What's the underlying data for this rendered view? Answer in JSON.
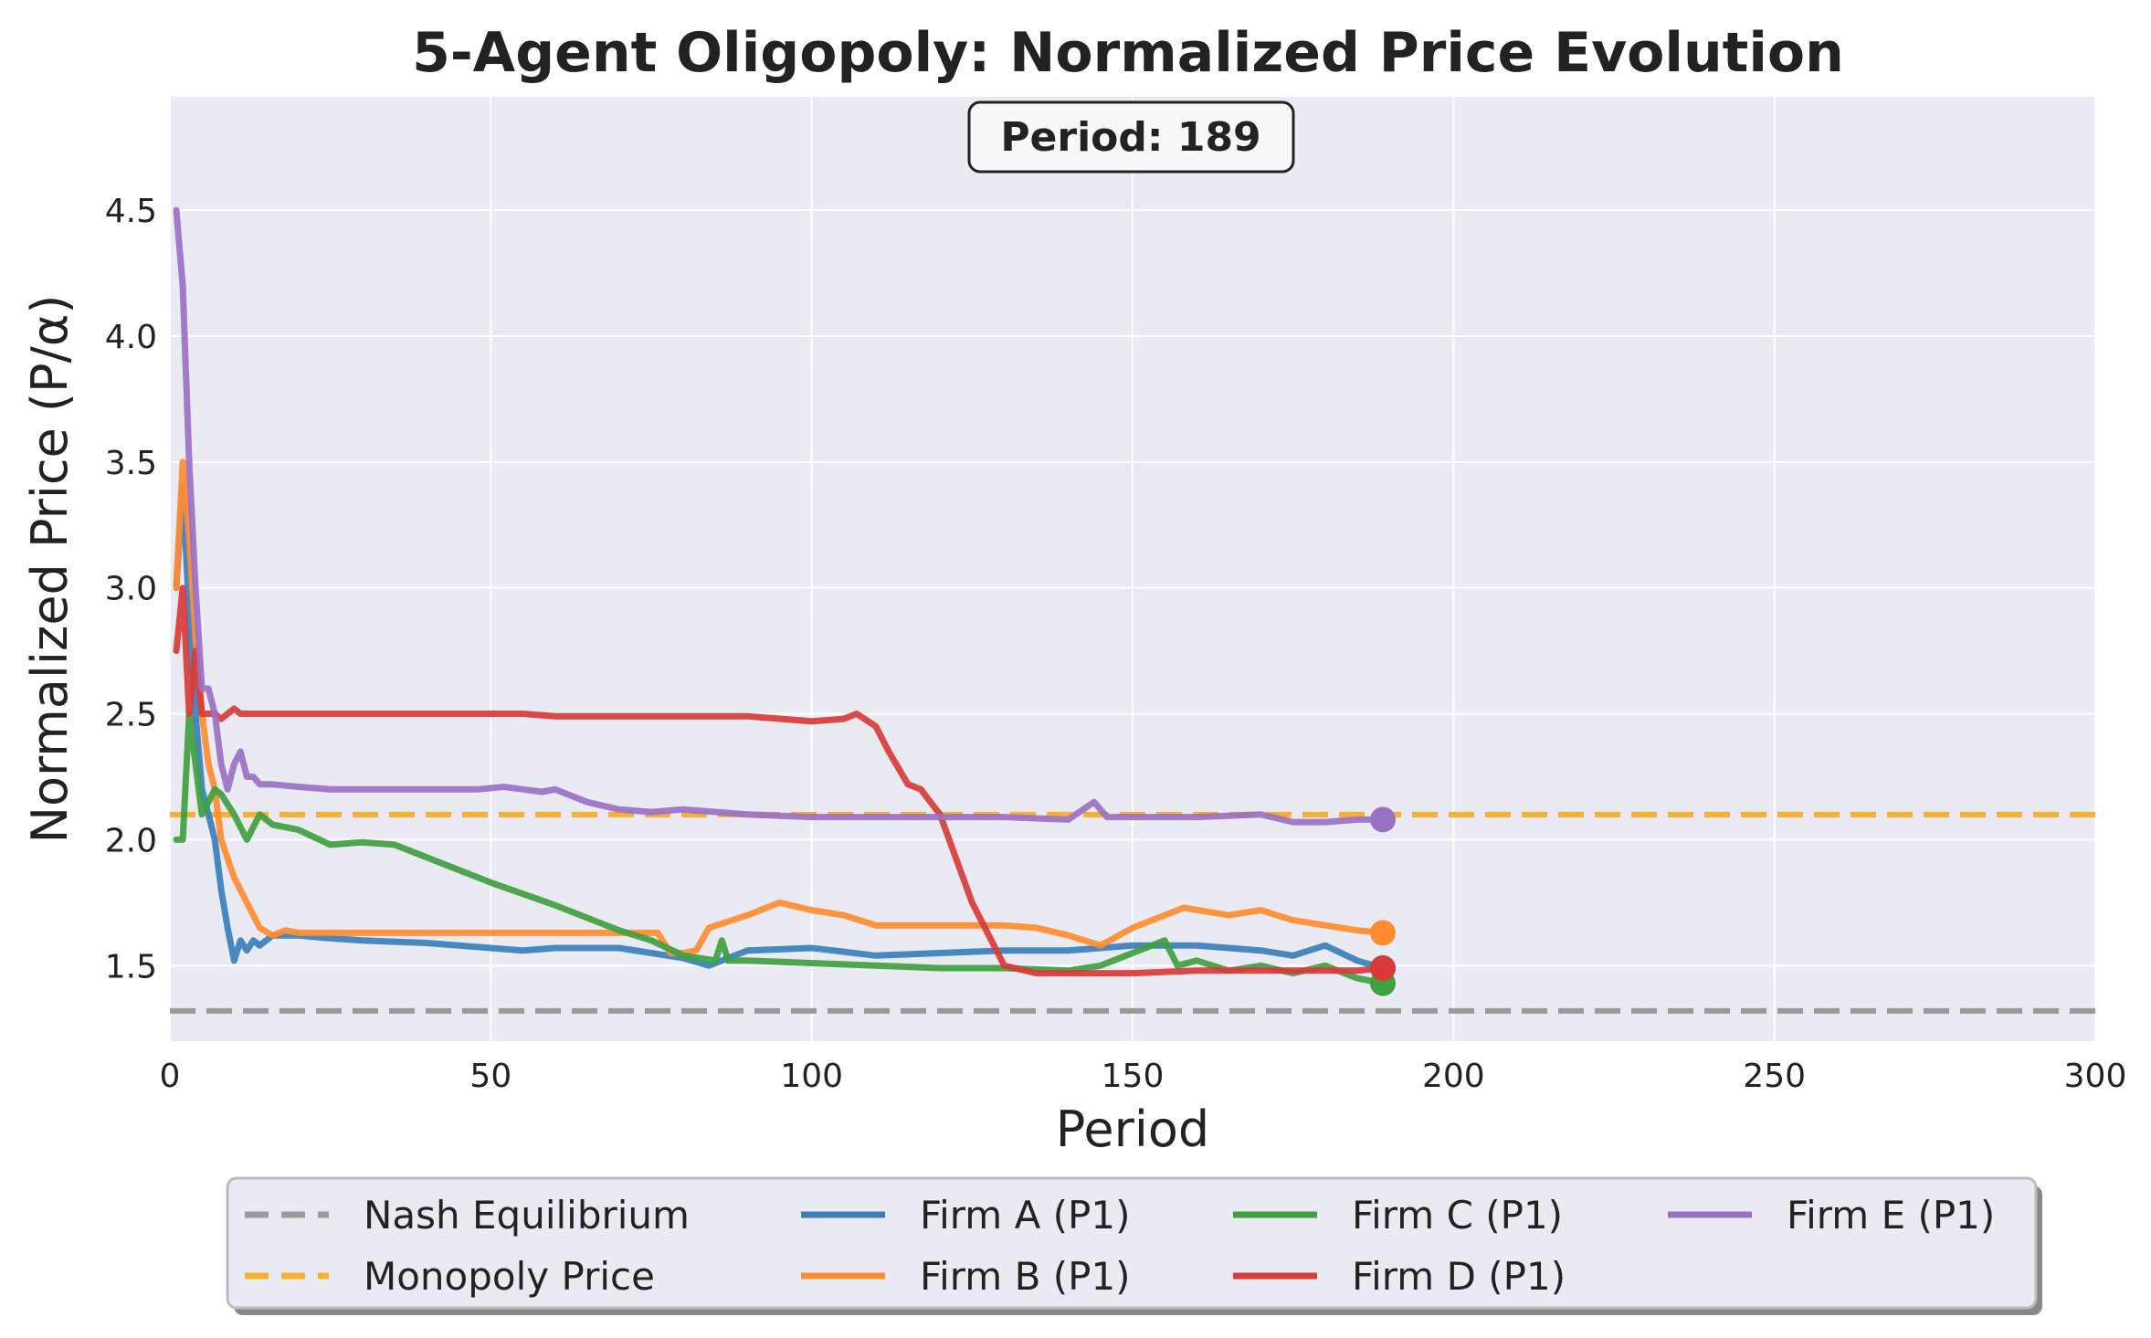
{
  "chart_data": {
    "type": "line",
    "title": "5-Agent Oligopoly: Normalized Price Evolution",
    "xlabel": "Period",
    "ylabel": "Normalized Price (P/α)",
    "xlim": [
      0,
      300
    ],
    "ylim": [
      1.2,
      4.95
    ],
    "xticks": [
      0,
      50,
      100,
      150,
      200,
      250,
      300
    ],
    "yticks": [
      1.5,
      2.0,
      2.5,
      3.0,
      3.5,
      4.0,
      4.5
    ],
    "grid": true,
    "legend_position": "bottom-center",
    "annotation": "Period: 189",
    "reference_lines": [
      {
        "name": "Nash Equilibrium",
        "y": 1.32,
        "color": "#999999",
        "style": "dashed"
      },
      {
        "name": "Monopoly Price",
        "y": 2.1,
        "color": "#f7b030",
        "style": "dashed"
      }
    ],
    "series": [
      {
        "name": "Firm A (P1)",
        "color": "#3a7fbd",
        "x": [
          1,
          2,
          3,
          4,
          5,
          6,
          7,
          8,
          9,
          10,
          11,
          12,
          13,
          14,
          15,
          16,
          20,
          24,
          30,
          40,
          50,
          55,
          60,
          70,
          80,
          84,
          90,
          100,
          110,
          120,
          130,
          140,
          150,
          160,
          170,
          175,
          180,
          185,
          189
        ],
        "values": [
          3.0,
          3.4,
          2.9,
          2.5,
          2.2,
          2.1,
          2.0,
          1.8,
          1.65,
          1.52,
          1.6,
          1.56,
          1.6,
          1.58,
          1.6,
          1.62,
          1.62,
          1.61,
          1.6,
          1.59,
          1.57,
          1.56,
          1.57,
          1.57,
          1.53,
          1.5,
          1.56,
          1.57,
          1.54,
          1.55,
          1.56,
          1.56,
          1.58,
          1.58,
          1.56,
          1.54,
          1.58,
          1.52,
          1.49
        ]
      },
      {
        "name": "Firm B (P1)",
        "color": "#ff8c30",
        "x": [
          1,
          2,
          3,
          4,
          5,
          6,
          7,
          8,
          10,
          12,
          14,
          16,
          18,
          20,
          30,
          50,
          70,
          76,
          78,
          80,
          82,
          84,
          90,
          95,
          100,
          105,
          110,
          120,
          130,
          135,
          140,
          145,
          150,
          155,
          158,
          165,
          170,
          175,
          180,
          185,
          189
        ],
        "values": [
          3.0,
          3.5,
          3.2,
          2.8,
          2.5,
          2.3,
          2.2,
          2.0,
          1.85,
          1.75,
          1.65,
          1.62,
          1.64,
          1.63,
          1.63,
          1.63,
          1.63,
          1.63,
          1.55,
          1.55,
          1.56,
          1.65,
          1.7,
          1.75,
          1.72,
          1.7,
          1.66,
          1.66,
          1.66,
          1.65,
          1.62,
          1.58,
          1.65,
          1.7,
          1.73,
          1.7,
          1.72,
          1.68,
          1.66,
          1.64,
          1.63
        ]
      },
      {
        "name": "Firm C (P1)",
        "color": "#3fa03f",
        "x": [
          1,
          2,
          3,
          4,
          5,
          6,
          7,
          8,
          10,
          12,
          14,
          16,
          20,
          25,
          30,
          35,
          50,
          60,
          70,
          75,
          80,
          85,
          86,
          87,
          90,
          100,
          110,
          120,
          130,
          140,
          145,
          150,
          155,
          157,
          160,
          165,
          170,
          175,
          180,
          185,
          189
        ],
        "values": [
          2.0,
          2.0,
          2.5,
          2.3,
          2.1,
          2.15,
          2.2,
          2.18,
          2.1,
          2.0,
          2.1,
          2.06,
          2.04,
          1.98,
          1.99,
          1.98,
          1.83,
          1.74,
          1.64,
          1.6,
          1.54,
          1.52,
          1.6,
          1.52,
          1.52,
          1.51,
          1.5,
          1.49,
          1.49,
          1.48,
          1.5,
          1.55,
          1.6,
          1.5,
          1.52,
          1.48,
          1.5,
          1.47,
          1.5,
          1.45,
          1.43
        ]
      },
      {
        "name": "Firm D (P1)",
        "color": "#d83a3a",
        "x": [
          1,
          2,
          3,
          4,
          5,
          6,
          7,
          8,
          9,
          10,
          11,
          12,
          15,
          20,
          30,
          40,
          50,
          55,
          60,
          70,
          80,
          90,
          100,
          105,
          107,
          110,
          112,
          115,
          117,
          120,
          125,
          130,
          135,
          140,
          150,
          160,
          170,
          180,
          185,
          189
        ],
        "values": [
          2.75,
          3.0,
          2.5,
          2.75,
          2.5,
          2.5,
          2.5,
          2.48,
          2.5,
          2.52,
          2.5,
          2.5,
          2.5,
          2.5,
          2.5,
          2.5,
          2.5,
          2.5,
          2.49,
          2.49,
          2.49,
          2.49,
          2.47,
          2.48,
          2.5,
          2.45,
          2.35,
          2.22,
          2.2,
          2.1,
          1.75,
          1.5,
          1.47,
          1.47,
          1.47,
          1.48,
          1.48,
          1.48,
          1.48,
          1.49
        ]
      },
      {
        "name": "Firm E (P1)",
        "color": "#9a70c5",
        "x": [
          1,
          2,
          3,
          4,
          5,
          6,
          7,
          8,
          9,
          10,
          11,
          12,
          13,
          14,
          16,
          20,
          25,
          30,
          40,
          48,
          52,
          55,
          58,
          60,
          65,
          70,
          75,
          80,
          90,
          100,
          110,
          120,
          130,
          140,
          144,
          146,
          150,
          160,
          170,
          175,
          180,
          185,
          189
        ],
        "values": [
          4.5,
          4.2,
          3.5,
          3.0,
          2.6,
          2.6,
          2.5,
          2.3,
          2.2,
          2.3,
          2.35,
          2.25,
          2.25,
          2.22,
          2.22,
          2.21,
          2.2,
          2.2,
          2.2,
          2.2,
          2.21,
          2.2,
          2.19,
          2.2,
          2.15,
          2.12,
          2.11,
          2.12,
          2.1,
          2.09,
          2.09,
          2.09,
          2.09,
          2.08,
          2.15,
          2.09,
          2.09,
          2.09,
          2.1,
          2.07,
          2.07,
          2.08,
          2.08
        ]
      }
    ],
    "endpoints": [
      {
        "name": "Firm A (P1)",
        "x": 189,
        "y": 1.49
      },
      {
        "name": "Firm B (P1)",
        "x": 189,
        "y": 1.63
      },
      {
        "name": "Firm C (P1)",
        "x": 189,
        "y": 1.43
      },
      {
        "name": "Firm D (P1)",
        "x": 189,
        "y": 1.49
      },
      {
        "name": "Firm E (P1)",
        "x": 189,
        "y": 2.08
      }
    ]
  },
  "legend": {
    "items": [
      {
        "label": "Nash Equilibrium",
        "color": "#999999",
        "dashed": true
      },
      {
        "label": "Monopoly Price",
        "color": "#f7b030",
        "dashed": true
      },
      {
        "label": "Firm A (P1)",
        "color": "#3a7fbd",
        "dashed": false
      },
      {
        "label": "Firm B (P1)",
        "color": "#ff8c30",
        "dashed": false
      },
      {
        "label": "Firm C (P1)",
        "color": "#3fa03f",
        "dashed": false
      },
      {
        "label": "Firm D (P1)",
        "color": "#d83a3a",
        "dashed": false
      },
      {
        "label": "Firm E (P1)",
        "color": "#9a70c5",
        "dashed": false
      }
    ]
  },
  "colors": {
    "plot_background": "#eaeaf2",
    "grid": "#ffffff",
    "text": "#222222"
  }
}
